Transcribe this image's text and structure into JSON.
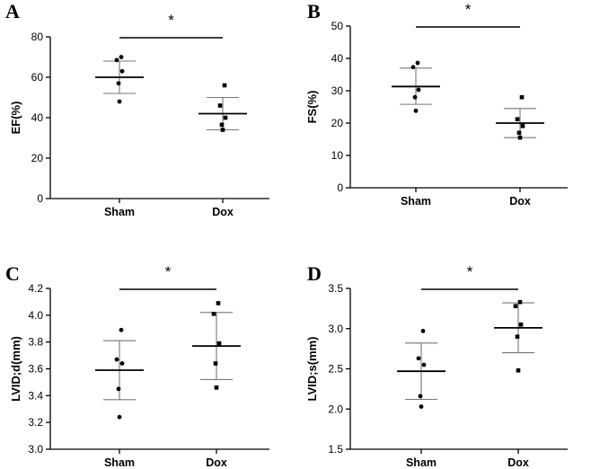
{
  "chart_data": [
    {
      "panel": "A",
      "type": "scatter",
      "ylabel": "EF(%)",
      "categories": [
        "Sham",
        "Dox"
      ],
      "ylim": [
        0,
        80
      ],
      "yticks": [
        0,
        20,
        40,
        60,
        80
      ],
      "significance": "*",
      "groups": [
        {
          "name": "Sham",
          "marker": "circle",
          "mean": 60,
          "sd": [
            52,
            68
          ],
          "points": [
            70,
            68.5,
            63,
            57,
            48
          ]
        },
        {
          "name": "Dox",
          "marker": "square",
          "mean": 42,
          "sd": [
            34,
            50
          ],
          "points": [
            56,
            46,
            40,
            36.5,
            34
          ]
        }
      ]
    },
    {
      "panel": "B",
      "type": "scatter",
      "ylabel": "FS(%)",
      "categories": [
        "Sham",
        "Dox"
      ],
      "ylim": [
        0,
        50
      ],
      "yticks": [
        0,
        10,
        20,
        30,
        40,
        50
      ],
      "significance": "*",
      "groups": [
        {
          "name": "Sham",
          "marker": "circle",
          "mean": 31.3,
          "sd": [
            25.8,
            37
          ],
          "points": [
            38.6,
            37.3,
            30.3,
            28,
            23.8
          ]
        },
        {
          "name": "Dox",
          "marker": "square",
          "mean": 20,
          "sd": [
            15.5,
            24.5
          ],
          "points": [
            28,
            21.2,
            19.1,
            17,
            15.5
          ]
        }
      ]
    },
    {
      "panel": "C",
      "type": "scatter",
      "ylabel": "LVID;d(mm)",
      "categories": [
        "Sham",
        "Dox"
      ],
      "ylim": [
        3.0,
        4.2
      ],
      "yticks": [
        "3.0",
        "3.2",
        "3.4",
        "3.6",
        "3.8",
        "4.0",
        "4.2"
      ],
      "significance": "*",
      "groups": [
        {
          "name": "Sham",
          "marker": "circle",
          "mean": 3.59,
          "sd": [
            3.37,
            3.81
          ],
          "points": [
            3.89,
            3.67,
            3.64,
            3.45,
            3.24
          ]
        },
        {
          "name": "Dox",
          "marker": "square",
          "mean": 3.77,
          "sd": [
            3.52,
            4.02
          ],
          "points": [
            4.09,
            4.01,
            3.79,
            3.64,
            3.46
          ]
        }
      ]
    },
    {
      "panel": "D",
      "type": "scatter",
      "ylabel": "LVID;s(mm)",
      "categories": [
        "Sham",
        "Dox"
      ],
      "ylim": [
        1.5,
        3.5
      ],
      "yticks": [
        "1.5",
        "2.0",
        "2.5",
        "3.0",
        "3.5"
      ],
      "significance": "*",
      "groups": [
        {
          "name": "Sham",
          "marker": "circle",
          "mean": 2.47,
          "sd": [
            2.12,
            2.82
          ],
          "points": [
            2.97,
            2.63,
            2.55,
            2.16,
            2.03
          ]
        },
        {
          "name": "Dox",
          "marker": "square",
          "mean": 3.01,
          "sd": [
            2.7,
            3.32
          ],
          "points": [
            3.33,
            3.28,
            3.05,
            2.9,
            2.48
          ]
        }
      ]
    }
  ]
}
